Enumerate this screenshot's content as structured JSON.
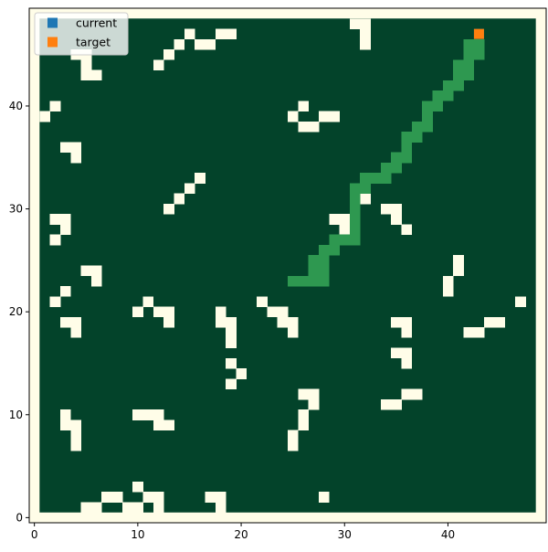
{
  "chart_data": {
    "type": "heatmap",
    "title": "",
    "xlabel": "",
    "ylabel": "",
    "xlim": [
      -0.5,
      49.5
    ],
    "ylim": [
      -0.5,
      49.5
    ],
    "x_ticks": [
      0,
      10,
      20,
      30,
      40
    ],
    "y_ticks": [
      0,
      10,
      20,
      30,
      40
    ],
    "grid": false,
    "legend_placement": "top-left",
    "colors": {
      "free": "#03432A",
      "obstacle": "#FFFDE8",
      "path": "#2E9850",
      "current": "#1F77B4",
      "target": "#FF7F0E"
    },
    "legend": [
      {
        "name": "current",
        "color": "#1F77B4"
      },
      {
        "name": "target",
        "color": "#FF7F0E"
      }
    ],
    "obstacles": [
      [
        31,
        48
      ],
      [
        32,
        48
      ],
      [
        32,
        47
      ],
      [
        32,
        46
      ],
      [
        15,
        47
      ],
      [
        18,
        47
      ],
      [
        19,
        47
      ],
      [
        14,
        46
      ],
      [
        16,
        46
      ],
      [
        17,
        46
      ],
      [
        4,
        45
      ],
      [
        5,
        45
      ],
      [
        13,
        45
      ],
      [
        5,
        44
      ],
      [
        12,
        44
      ],
      [
        5,
        43
      ],
      [
        6,
        43
      ],
      [
        2,
        40
      ],
      [
        1,
        39
      ],
      [
        26,
        40
      ],
      [
        25,
        39
      ],
      [
        28,
        39
      ],
      [
        29,
        39
      ],
      [
        26,
        38
      ],
      [
        27,
        38
      ],
      [
        3,
        36
      ],
      [
        4,
        36
      ],
      [
        4,
        35
      ],
      [
        16,
        33
      ],
      [
        15,
        32
      ],
      [
        32,
        32
      ],
      [
        14,
        31
      ],
      [
        31,
        31
      ],
      [
        32,
        31
      ],
      [
        13,
        30
      ],
      [
        34,
        30
      ],
      [
        35,
        30
      ],
      [
        2,
        29
      ],
      [
        3,
        29
      ],
      [
        29,
        29
      ],
      [
        30,
        29
      ],
      [
        35,
        29
      ],
      [
        3,
        28
      ],
      [
        30,
        28
      ],
      [
        36,
        28
      ],
      [
        2,
        27
      ],
      [
        41,
        25
      ],
      [
        5,
        24
      ],
      [
        6,
        24
      ],
      [
        41,
        24
      ],
      [
        6,
        23
      ],
      [
        40,
        23
      ],
      [
        3,
        22
      ],
      [
        40,
        22
      ],
      [
        2,
        21
      ],
      [
        11,
        21
      ],
      [
        22,
        21
      ],
      [
        47,
        21
      ],
      [
        10,
        20
      ],
      [
        12,
        20
      ],
      [
        13,
        20
      ],
      [
        18,
        20
      ],
      [
        23,
        20
      ],
      [
        24,
        20
      ],
      [
        3,
        19
      ],
      [
        4,
        19
      ],
      [
        13,
        19
      ],
      [
        18,
        19
      ],
      [
        19,
        19
      ],
      [
        24,
        19
      ],
      [
        25,
        19
      ],
      [
        35,
        19
      ],
      [
        36,
        19
      ],
      [
        44,
        19
      ],
      [
        45,
        19
      ],
      [
        4,
        18
      ],
      [
        19,
        18
      ],
      [
        25,
        18
      ],
      [
        36,
        18
      ],
      [
        42,
        18
      ],
      [
        43,
        18
      ],
      [
        19,
        17
      ],
      [
        35,
        16
      ],
      [
        36,
        16
      ],
      [
        36,
        15
      ],
      [
        19,
        15
      ],
      [
        20,
        14
      ],
      [
        19,
        13
      ],
      [
        26,
        12
      ],
      [
        27,
        12
      ],
      [
        36,
        12
      ],
      [
        37,
        12
      ],
      [
        27,
        11
      ],
      [
        34,
        11
      ],
      [
        35,
        11
      ],
      [
        3,
        10
      ],
      [
        10,
        10
      ],
      [
        11,
        10
      ],
      [
        12,
        10
      ],
      [
        26,
        10
      ],
      [
        3,
        9
      ],
      [
        4,
        9
      ],
      [
        12,
        9
      ],
      [
        13,
        9
      ],
      [
        26,
        9
      ],
      [
        4,
        8
      ],
      [
        25,
        8
      ],
      [
        4,
        7
      ],
      [
        25,
        7
      ],
      [
        10,
        3
      ],
      [
        7,
        2
      ],
      [
        8,
        2
      ],
      [
        11,
        2
      ],
      [
        12,
        2
      ],
      [
        17,
        2
      ],
      [
        18,
        2
      ],
      [
        28,
        2
      ],
      [
        5,
        1
      ],
      [
        6,
        1
      ],
      [
        9,
        1
      ],
      [
        10,
        1
      ],
      [
        12,
        1
      ],
      [
        18,
        1
      ]
    ],
    "path": [
      [
        25,
        23
      ],
      [
        26,
        23
      ],
      [
        27,
        23
      ],
      [
        28,
        23
      ],
      [
        27,
        24
      ],
      [
        28,
        24
      ],
      [
        27,
        25
      ],
      [
        28,
        25
      ],
      [
        28,
        26
      ],
      [
        29,
        26
      ],
      [
        29,
        27
      ],
      [
        30,
        27
      ],
      [
        31,
        27
      ],
      [
        31,
        28
      ],
      [
        31,
        29
      ],
      [
        31,
        30
      ],
      [
        31,
        31
      ],
      [
        31,
        32
      ],
      [
        32,
        32
      ],
      [
        32,
        33
      ],
      [
        33,
        33
      ],
      [
        34,
        33
      ],
      [
        34,
        34
      ],
      [
        35,
        34
      ],
      [
        35,
        35
      ],
      [
        36,
        35
      ],
      [
        36,
        36
      ],
      [
        36,
        37
      ],
      [
        37,
        37
      ],
      [
        37,
        38
      ],
      [
        38,
        38
      ],
      [
        38,
        39
      ],
      [
        38,
        40
      ],
      [
        39,
        40
      ],
      [
        39,
        41
      ],
      [
        40,
        41
      ],
      [
        40,
        42
      ],
      [
        41,
        42
      ],
      [
        41,
        43
      ],
      [
        42,
        43
      ],
      [
        41,
        44
      ],
      [
        42,
        44
      ],
      [
        42,
        45
      ],
      [
        43,
        45
      ],
      [
        42,
        46
      ],
      [
        43,
        46
      ]
    ],
    "current": [
      43,
      47
    ],
    "target": [
      43,
      47
    ]
  }
}
